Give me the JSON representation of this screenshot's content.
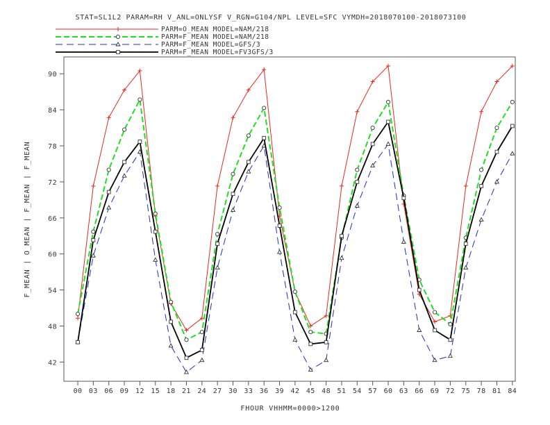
{
  "chart_data": {
    "type": "line",
    "title": "STAT=SL1L2 PARAM=RH V_ANL=ONLYSF V_RGN=G104/NPL LEVEL=SFC VYMDH=2018070100-2018073100",
    "xlabel": "FHOUR VHHMM=0000>1200",
    "ylabel": "F_MEAN | O_MEAN | F_MEAN | F_MEAN",
    "x": [
      "00",
      "03",
      "06",
      "09",
      "12",
      "15",
      "18",
      "21",
      "24",
      "27",
      "30",
      "33",
      "36",
      "39",
      "42",
      "45",
      "48",
      "51",
      "54",
      "57",
      "60",
      "63",
      "66",
      "69",
      "72",
      "75",
      "78",
      "81",
      "84"
    ],
    "yticks": [
      42,
      48,
      54,
      60,
      66,
      72,
      78,
      84,
      90
    ],
    "ylim": [
      38.8,
      92.8
    ],
    "grid": false,
    "legend_position": "top-left",
    "series": [
      {
        "name": "PARM=O_MEAN MODEL=NAM/218",
        "color": "#e8271b",
        "dash": "solid",
        "marker": "+",
        "values": [
          49.3,
          71.3,
          82.7,
          87.3,
          90.5,
          66.3,
          51.7,
          47.3,
          49.3,
          71.3,
          82.7,
          87.3,
          90.7,
          66.3,
          53.7,
          48.0,
          49.7,
          71.3,
          83.7,
          88.7,
          91.3,
          68.3,
          53.3,
          48.7,
          49.7,
          71.3,
          83.7,
          88.7,
          91.3
        ]
      },
      {
        "name": "PARM=F_MEAN MODEL=NAM/218",
        "color": "#22dd22",
        "dash": "dashed",
        "marker": "circle",
        "values": [
          50.0,
          63.7,
          74.0,
          80.7,
          85.7,
          66.7,
          52.0,
          45.7,
          47.0,
          63.3,
          73.3,
          79.7,
          84.3,
          67.7,
          53.7,
          47.0,
          46.7,
          62.7,
          74.0,
          81.0,
          85.3,
          69.7,
          55.7,
          50.3,
          48.3,
          62.7,
          74.0,
          81.0,
          85.3
        ]
      },
      {
        "name": "PARM=F_MEAN MODEL=GFS/3",
        "color": "#1a2ecc",
        "dash": "longdash",
        "marker": "triangle",
        "values": [
          45.3,
          59.7,
          67.7,
          73.0,
          77.0,
          59.0,
          44.7,
          40.3,
          42.3,
          57.7,
          67.3,
          73.7,
          78.0,
          60.3,
          45.7,
          40.7,
          42.3,
          59.3,
          68.0,
          74.7,
          78.3,
          62.0,
          47.3,
          42.3,
          43.0,
          57.7,
          65.7,
          72.0,
          76.7
        ]
      },
      {
        "name": "PARM=F_MEAN MODEL=FV3GFS/3",
        "color": "#000000",
        "dash": "solid",
        "marker": "square",
        "values": [
          45.3,
          62.3,
          70.3,
          75.3,
          78.7,
          63.7,
          48.7,
          42.7,
          44.0,
          61.7,
          70.0,
          75.3,
          79.3,
          64.7,
          50.3,
          45.0,
          45.3,
          63.0,
          72.0,
          78.3,
          82.0,
          69.3,
          54.0,
          47.3,
          45.7,
          61.7,
          71.3,
          77.0,
          81.3
        ]
      }
    ]
  }
}
